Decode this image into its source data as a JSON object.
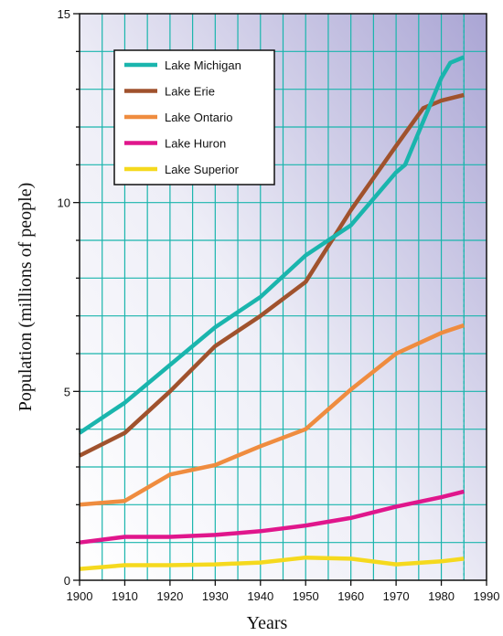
{
  "chart_data": {
    "type": "line",
    "xlabel": "Years",
    "ylabel": "Population (millions of people)",
    "xlim": [
      1900,
      1990
    ],
    "ylim": [
      0,
      15
    ],
    "x_ticks": [
      "1900",
      "1910",
      "1920",
      "1930",
      "1940",
      "1950",
      "1960",
      "1970",
      "1980",
      "1990"
    ],
    "y_ticks": [
      "0",
      "5",
      "10",
      "15"
    ],
    "grid": true,
    "legend_position": "top-left",
    "reference_line_x": 1985,
    "series": [
      {
        "name": "Lake Michigan",
        "color": "#1ab5ad",
        "x": [
          1900,
          1910,
          1920,
          1930,
          1940,
          1950,
          1960,
          1970,
          1972,
          1980,
          1982,
          1985
        ],
        "y": [
          3.9,
          4.7,
          5.7,
          6.7,
          7.5,
          8.6,
          9.4,
          10.8,
          11.0,
          13.3,
          13.7,
          13.85
        ]
      },
      {
        "name": "Lake Erie",
        "color": "#a0522d",
        "x": [
          1900,
          1910,
          1920,
          1930,
          1940,
          1950,
          1960,
          1970,
          1976,
          1980,
          1985
        ],
        "y": [
          3.3,
          3.9,
          5.0,
          6.2,
          7.0,
          7.9,
          9.8,
          11.5,
          12.5,
          12.7,
          12.85
        ]
      },
      {
        "name": "Lake Ontario",
        "color": "#ef8c3f",
        "x": [
          1900,
          1910,
          1920,
          1930,
          1940,
          1950,
          1960,
          1970,
          1980,
          1985
        ],
        "y": [
          2.0,
          2.1,
          2.8,
          3.05,
          3.55,
          4.0,
          5.05,
          6.0,
          6.55,
          6.75
        ]
      },
      {
        "name": "Lake Huron",
        "color": "#e0168c",
        "x": [
          1900,
          1910,
          1920,
          1930,
          1940,
          1950,
          1960,
          1970,
          1980,
          1985
        ],
        "y": [
          1.0,
          1.15,
          1.15,
          1.2,
          1.3,
          1.45,
          1.65,
          1.95,
          2.2,
          2.35
        ]
      },
      {
        "name": "Lake Superior",
        "color": "#f5d91e",
        "x": [
          1900,
          1910,
          1920,
          1930,
          1940,
          1950,
          1960,
          1970,
          1980,
          1985
        ],
        "y": [
          0.3,
          0.4,
          0.4,
          0.42,
          0.47,
          0.6,
          0.57,
          0.42,
          0.5,
          0.57
        ]
      }
    ]
  }
}
